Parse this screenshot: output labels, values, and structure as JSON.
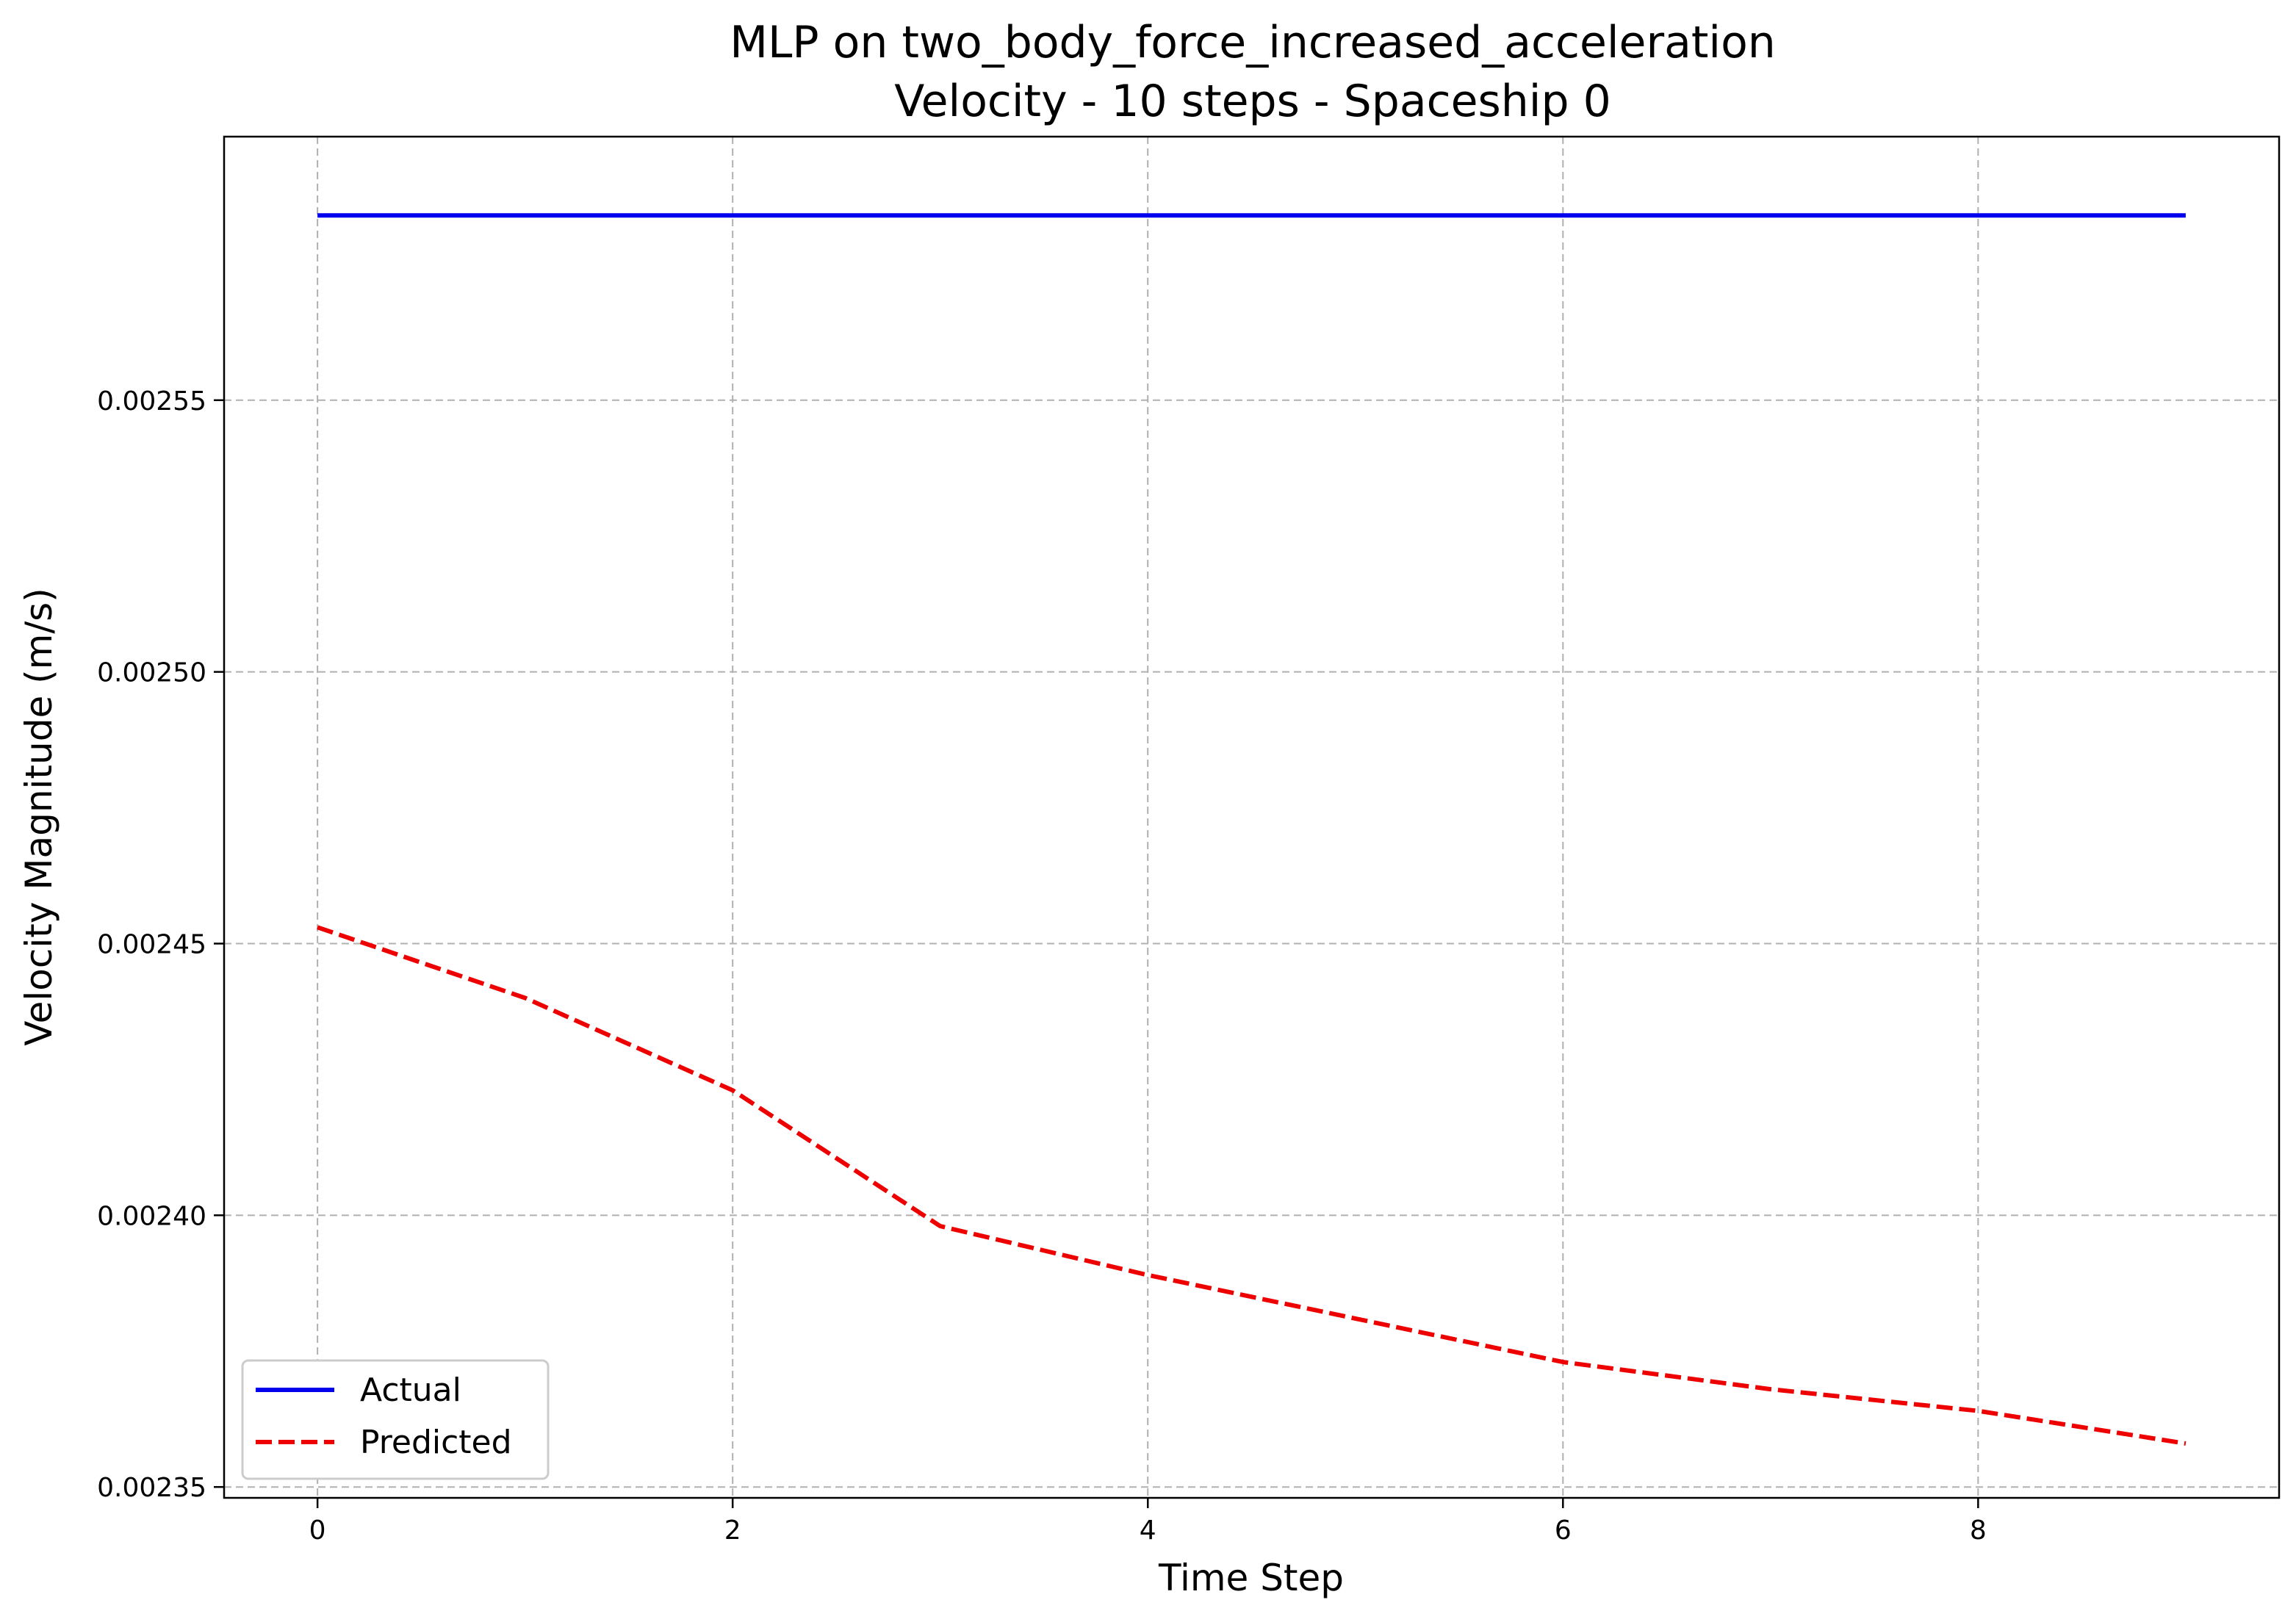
{
  "chart_data": {
    "type": "line",
    "title_line1": "MLP on two_body_force_increased_acceleration",
    "title_line2": "Velocity - 10 steps - Spaceship 0",
    "xlabel": "Time Step",
    "ylabel": "Velocity Magnitude (m/s)",
    "x": [
      0,
      1,
      2,
      3,
      4,
      5,
      6,
      7,
      8,
      9
    ],
    "xlim": [
      -0.45,
      9.45
    ],
    "ylim": [
      0.002348,
      0.0025985
    ],
    "xticks": [
      0,
      2,
      4,
      6,
      8
    ],
    "xtick_labels": [
      "0",
      "2",
      "4",
      "6",
      "8"
    ],
    "yticks": [
      0.00235,
      0.0024,
      0.00245,
      0.0025,
      0.00255
    ],
    "ytick_labels": [
      "0.00235",
      "0.00240",
      "0.00245",
      "0.00250",
      "0.00255"
    ],
    "grid": true,
    "legend_position": "lower-left",
    "series": [
      {
        "name": "Actual",
        "color": "#0000ee",
        "style": "solid",
        "values": [
          0.002584,
          0.002584,
          0.002584,
          0.002584,
          0.002584,
          0.002584,
          0.002584,
          0.002584,
          0.002584,
          0.002584
        ]
      },
      {
        "name": "Predicted",
        "color": "#ee0000",
        "style": "dashed",
        "values": [
          0.002453,
          0.00244,
          0.002423,
          0.002398,
          0.002389,
          0.002381,
          0.002373,
          0.002368,
          0.002364,
          0.002358
        ]
      }
    ]
  }
}
